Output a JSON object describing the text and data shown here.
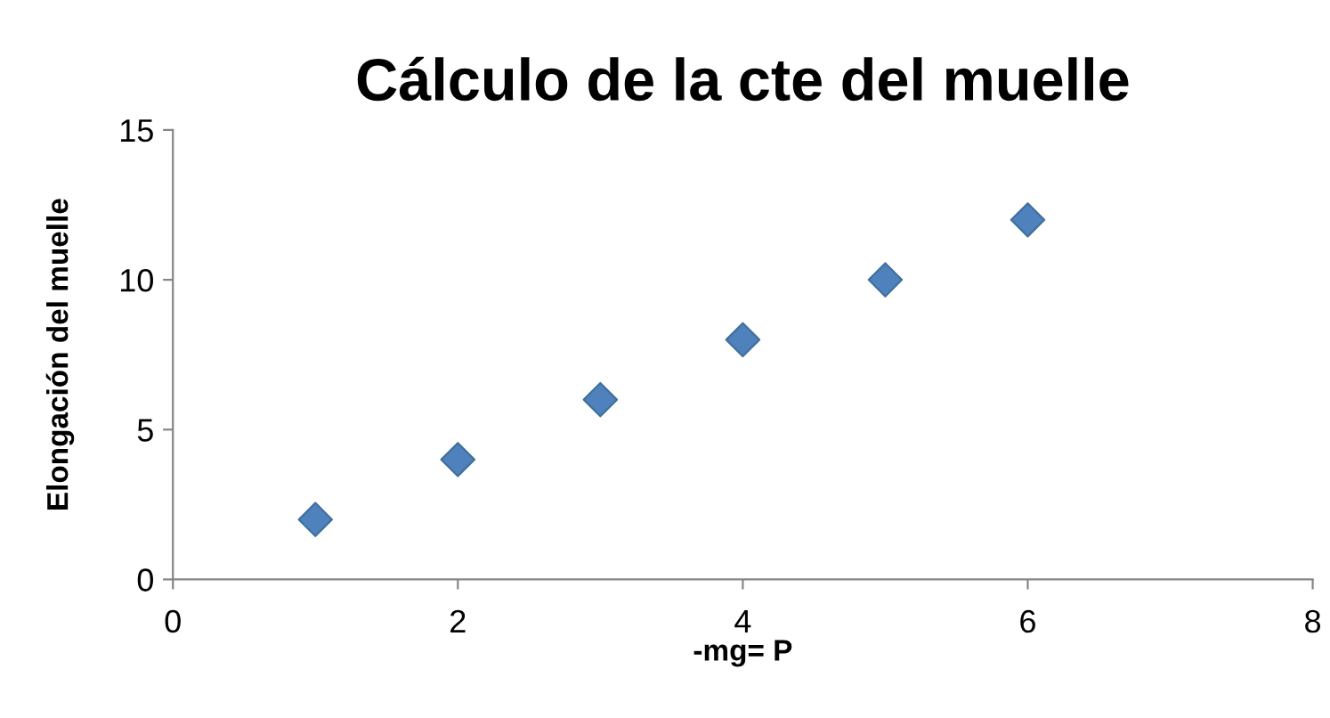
{
  "chart_data": {
    "type": "scatter",
    "title": "Cálculo de la cte del muelle",
    "xlabel": "-mg= P",
    "ylabel": "Elongación del muelle",
    "x": [
      1,
      2,
      3,
      4,
      5,
      6
    ],
    "series": [
      {
        "color": "#4f81bd",
        "values": [
          2,
          4,
          6,
          8,
          10,
          12
        ]
      }
    ],
    "xlim": [
      0,
      8
    ],
    "xticks": [
      0,
      2,
      4,
      6,
      8
    ],
    "ylim": [
      0,
      15
    ],
    "yticks": [
      0,
      5,
      10,
      15
    ],
    "marker": "diamond",
    "grid": false
  }
}
